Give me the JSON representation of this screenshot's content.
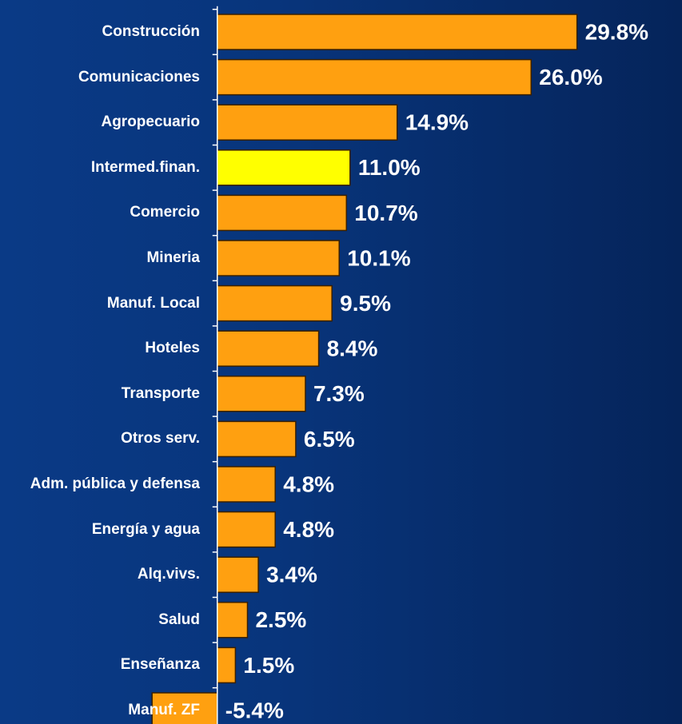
{
  "chart_data": {
    "type": "bar",
    "orientation": "horizontal",
    "categories": [
      "Construcción",
      "Comunicaciones",
      "Agropecuario",
      "Intermed.finan.",
      "Comercio",
      "Mineria",
      "Manuf. Local",
      "Hoteles",
      "Transporte",
      "Otros serv.",
      "Adm. pública y defensa",
      "Energía y agua",
      "Alq.vivs.",
      "Salud",
      "Enseñanza",
      "Manuf. ZF"
    ],
    "values": [
      29.8,
      26.0,
      14.9,
      11.0,
      10.7,
      10.1,
      9.5,
      8.4,
      7.3,
      6.5,
      4.8,
      4.8,
      3.4,
      2.5,
      1.5,
      -5.4
    ],
    "value_labels": [
      "29.8%",
      "26.0%",
      "14.9%",
      "11.0%",
      "10.7%",
      "10.1%",
      "9.5%",
      "8.4%",
      "7.3%",
      "6.5%",
      "4.8%",
      "4.8%",
      "3.4%",
      "2.5%",
      "1.5%",
      "-5.4%"
    ],
    "colors": [
      "#ffa010",
      "#ffa010",
      "#ffa010",
      "#ffff00",
      "#ffa010",
      "#ffa010",
      "#ffa010",
      "#ffa010",
      "#ffa010",
      "#ffa010",
      "#ffa010",
      "#ffa010",
      "#ffa010",
      "#ffa010",
      "#ffa010",
      "#ffa010"
    ],
    "xlim": [
      -18,
      38.5
    ]
  }
}
